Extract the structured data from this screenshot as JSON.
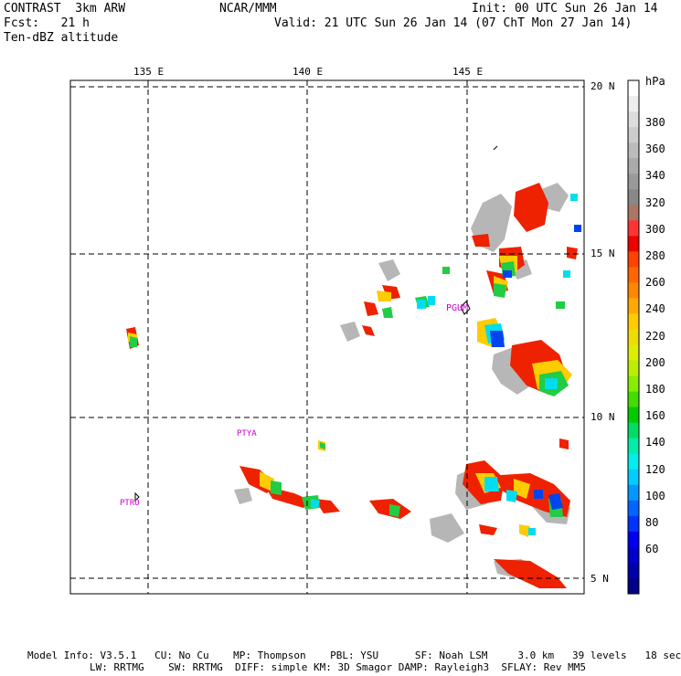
{
  "header": {
    "left_line1": "CONTRAST  3km ARW",
    "left_line2": "Fcst:   21 h",
    "left_line3": "Ten-dBZ altitude",
    "center_line1": "NCAR/MMM",
    "right_line1": "Init: 00 UTC Sun 26 Jan 14",
    "right_line2": "Valid: 21 UTC Sun 26 Jan 14 (07 ChT Mon 27 Jan 14)"
  },
  "map": {
    "lon_labels": [
      "135 E",
      "140 E",
      "145 E"
    ],
    "lat_labels": [
      "20 N",
      "15 N",
      "10 N",
      "5 N"
    ],
    "stations": [
      {
        "id": "PGUM",
        "color": "#cc00cc"
      },
      {
        "id": "PTYA",
        "color": "#cc00cc"
      },
      {
        "id": "PTRO",
        "color": "#cc00cc"
      }
    ]
  },
  "colorbar": {
    "unit": "hPa",
    "labels": [
      "380",
      "360",
      "340",
      "320",
      "300",
      "280",
      "260",
      "240",
      "220",
      "200",
      "180",
      "160",
      "140",
      "120",
      "100",
      "80",
      "60"
    ],
    "colors": [
      "#ffffff",
      "#eeeeee",
      "#dddddd",
      "#cccccc",
      "#bbbbbb",
      "#aaaaaa",
      "#999999",
      "#888888",
      "#aa7766",
      "#ff3333",
      "#ee0000",
      "#ff4400",
      "#ff6600",
      "#ff8800",
      "#ffaa00",
      "#ffcc00",
      "#eedd00",
      "#ddee00",
      "#bbee00",
      "#88ee00",
      "#44dd00",
      "#00cc00",
      "#00dd66",
      "#00eeaa",
      "#00eeee",
      "#00ccff",
      "#0099ff",
      "#0066ff",
      "#0033ff",
      "#0000ee",
      "#0000cc",
      "#0000aa",
      "#000088"
    ]
  },
  "footer": {
    "line1": "Model Info: V3.5.1   CU: No Cu    MP: Thompson    PBL: YSU      SF: Noah LSM     3.0 km   39 levels   18 sec",
    "line2": "LW: RRTMG    SW: RRTMG  DIFF: simple KM: 3D Smagor DAMP: Rayleigh3  SFLAY: Rev MM5"
  }
}
